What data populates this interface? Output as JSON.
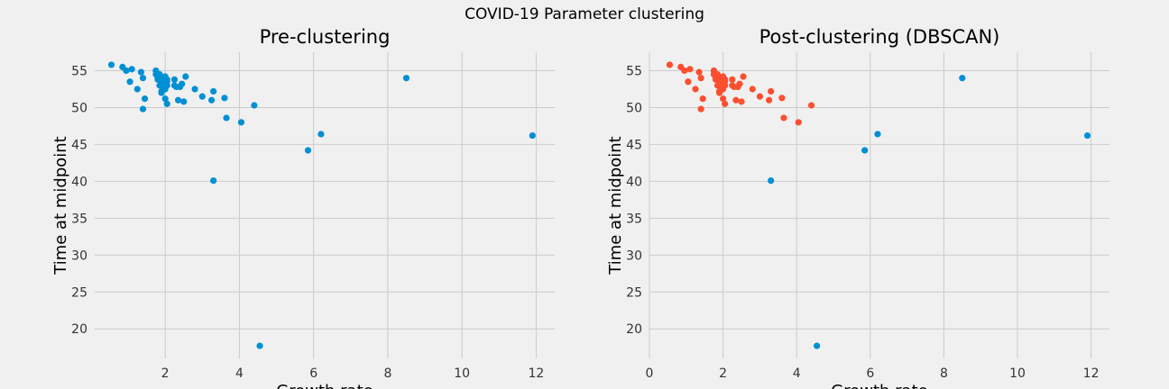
{
  "suptitle": "COVID-19 Parameter clustering",
  "colors": {
    "background": "#f0f0f0",
    "grid": "#cbcbcb",
    "blue": "#008fd5",
    "red": "#fc4f30"
  },
  "chart_data": [
    {
      "type": "scatter",
      "title": "Pre-clustering",
      "xlabel": "Growth rate",
      "ylabel": "Time at midpoint",
      "xlim": [
        0.1,
        12.5
      ],
      "ylim": [
        16,
        57.5
      ],
      "xticks": [
        2,
        4,
        6,
        8,
        10,
        12
      ],
      "yticks": [
        20,
        25,
        30,
        35,
        40,
        45,
        50,
        55
      ],
      "grid": true,
      "series": [
        {
          "color": "#008fd5",
          "x": [
            0.55,
            0.85,
            0.95,
            1.1,
            1.05,
            1.25,
            1.35,
            1.4,
            1.4,
            1.45,
            1.75,
            1.75,
            1.8,
            1.8,
            1.85,
            1.85,
            1.9,
            1.9,
            1.9,
            1.95,
            1.95,
            2.0,
            2.0,
            2.0,
            2.0,
            2.05,
            2.05,
            2.05,
            2.05,
            2.25,
            2.25,
            2.3,
            2.35,
            2.4,
            2.45,
            2.5,
            2.55,
            2.8,
            3.0,
            3.25,
            3.3,
            3.3,
            3.6,
            3.65,
            4.05,
            4.4,
            4.55,
            5.85,
            6.2,
            8.5,
            11.9
          ],
          "y": [
            55.8,
            55.5,
            55.0,
            55.2,
            53.5,
            52.5,
            54.8,
            49.8,
            54.0,
            51.2,
            55.0,
            54.5,
            54.0,
            53.8,
            54.5,
            53.0,
            52.2,
            52.0,
            53.5,
            52.8,
            54.0,
            52.5,
            53.2,
            54.2,
            51.2,
            53.8,
            53.0,
            53.5,
            50.5,
            53.8,
            53.0,
            52.8,
            51.0,
            52.8,
            53.2,
            50.8,
            54.2,
            52.5,
            51.5,
            51.0,
            52.2,
            40.1,
            51.3,
            48.6,
            48.0,
            50.3,
            17.7,
            44.2,
            46.4,
            54.0,
            46.2
          ]
        }
      ]
    },
    {
      "type": "scatter",
      "title": "Post-clustering (DBSCAN)",
      "xlabel": "Growth rate",
      "ylabel": "Time at midpoint",
      "xlim": [
        0,
        12.5
      ],
      "ylim": [
        16,
        57.5
      ],
      "xticks": [
        0,
        2,
        4,
        6,
        8,
        10,
        12
      ],
      "yticks": [
        20,
        25,
        30,
        35,
        40,
        45,
        50,
        55
      ],
      "grid": true,
      "series": [
        {
          "color": "#fc4f30",
          "x": [
            0.55,
            0.85,
            0.95,
            1.1,
            1.05,
            1.25,
            1.35,
            1.4,
            1.4,
            1.45,
            1.75,
            1.75,
            1.8,
            1.8,
            1.85,
            1.85,
            1.9,
            1.9,
            1.9,
            1.95,
            1.95,
            2.0,
            2.0,
            2.0,
            2.0,
            2.05,
            2.05,
            2.05,
            2.05,
            2.25,
            2.25,
            2.3,
            2.35,
            2.4,
            2.45,
            2.5,
            2.55,
            2.8,
            3.0,
            3.25,
            3.3,
            3.6,
            3.65,
            4.05,
            4.4
          ],
          "y": [
            55.8,
            55.5,
            55.0,
            55.2,
            53.5,
            52.5,
            54.8,
            49.8,
            54.0,
            51.2,
            55.0,
            54.5,
            54.0,
            53.8,
            54.5,
            53.0,
            52.2,
            52.0,
            53.5,
            52.8,
            54.0,
            52.5,
            53.2,
            54.2,
            51.2,
            53.8,
            53.0,
            53.5,
            50.5,
            53.8,
            53.0,
            52.8,
            51.0,
            52.8,
            53.2,
            50.8,
            54.2,
            52.5,
            51.5,
            51.0,
            52.2,
            51.3,
            48.6,
            48.0,
            50.3
          ]
        },
        {
          "color": "#008fd5",
          "x": [
            3.3,
            4.55,
            5.85,
            6.2,
            8.5,
            11.9
          ],
          "y": [
            40.1,
            17.7,
            44.2,
            46.4,
            54.0,
            46.2
          ]
        }
      ]
    }
  ]
}
